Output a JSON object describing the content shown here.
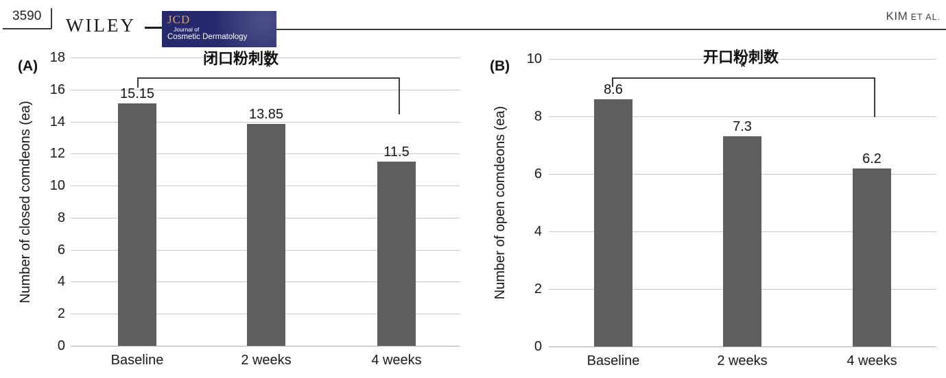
{
  "header": {
    "page_number": "3590",
    "publisher_logo": "WILEY",
    "journal_logo": {
      "abbrev": "JCD",
      "line1": "Journal of",
      "line2": "Cosmetic Dermatology",
      "bg_color": "#262a6d",
      "abbrev_color": "#d9a062",
      "text_color": "#ffffff"
    },
    "running_head": {
      "author": "KIM",
      "etal": "ET AL."
    }
  },
  "chart_data": [
    {
      "type": "bar",
      "panel": "(A)",
      "title": "闭口粉刺数",
      "ylabel": "Number of closed comdeons (ea)",
      "xlabel": "",
      "categories": [
        "Baseline",
        "2 weeks",
        "4 weeks"
      ],
      "values": [
        15.15,
        13.85,
        11.5
      ],
      "value_labels": [
        "15.15",
        "13.85",
        "11.5"
      ],
      "ylim": [
        0,
        18
      ],
      "yticks": [
        0,
        2,
        4,
        6,
        8,
        10,
        12,
        14,
        16,
        18
      ],
      "grid": true,
      "legend": "none",
      "bar_color": "#5e5e5e",
      "grid_color": "#c9c9c9",
      "significance": {
        "label": "*",
        "from": "Baseline",
        "to": "4 weeks"
      }
    },
    {
      "type": "bar",
      "panel": "(B)",
      "title": "开口粉刺数",
      "ylabel": "Number of open comdeons (ea)",
      "xlabel": "",
      "categories": [
        "Baseline",
        "2 weeks",
        "4 weeks"
      ],
      "values": [
        8.6,
        7.3,
        6.2
      ],
      "value_labels": [
        "8.6",
        "7.3",
        "6.2"
      ],
      "ylim": [
        0,
        10
      ],
      "yticks": [
        0,
        2,
        4,
        6,
        8,
        10
      ],
      "grid": true,
      "legend": "none",
      "bar_color": "#5e5e5e",
      "grid_color": "#c9c9c9",
      "significance": {
        "label": "*",
        "from": "Baseline",
        "to": "4 weeks"
      }
    }
  ]
}
